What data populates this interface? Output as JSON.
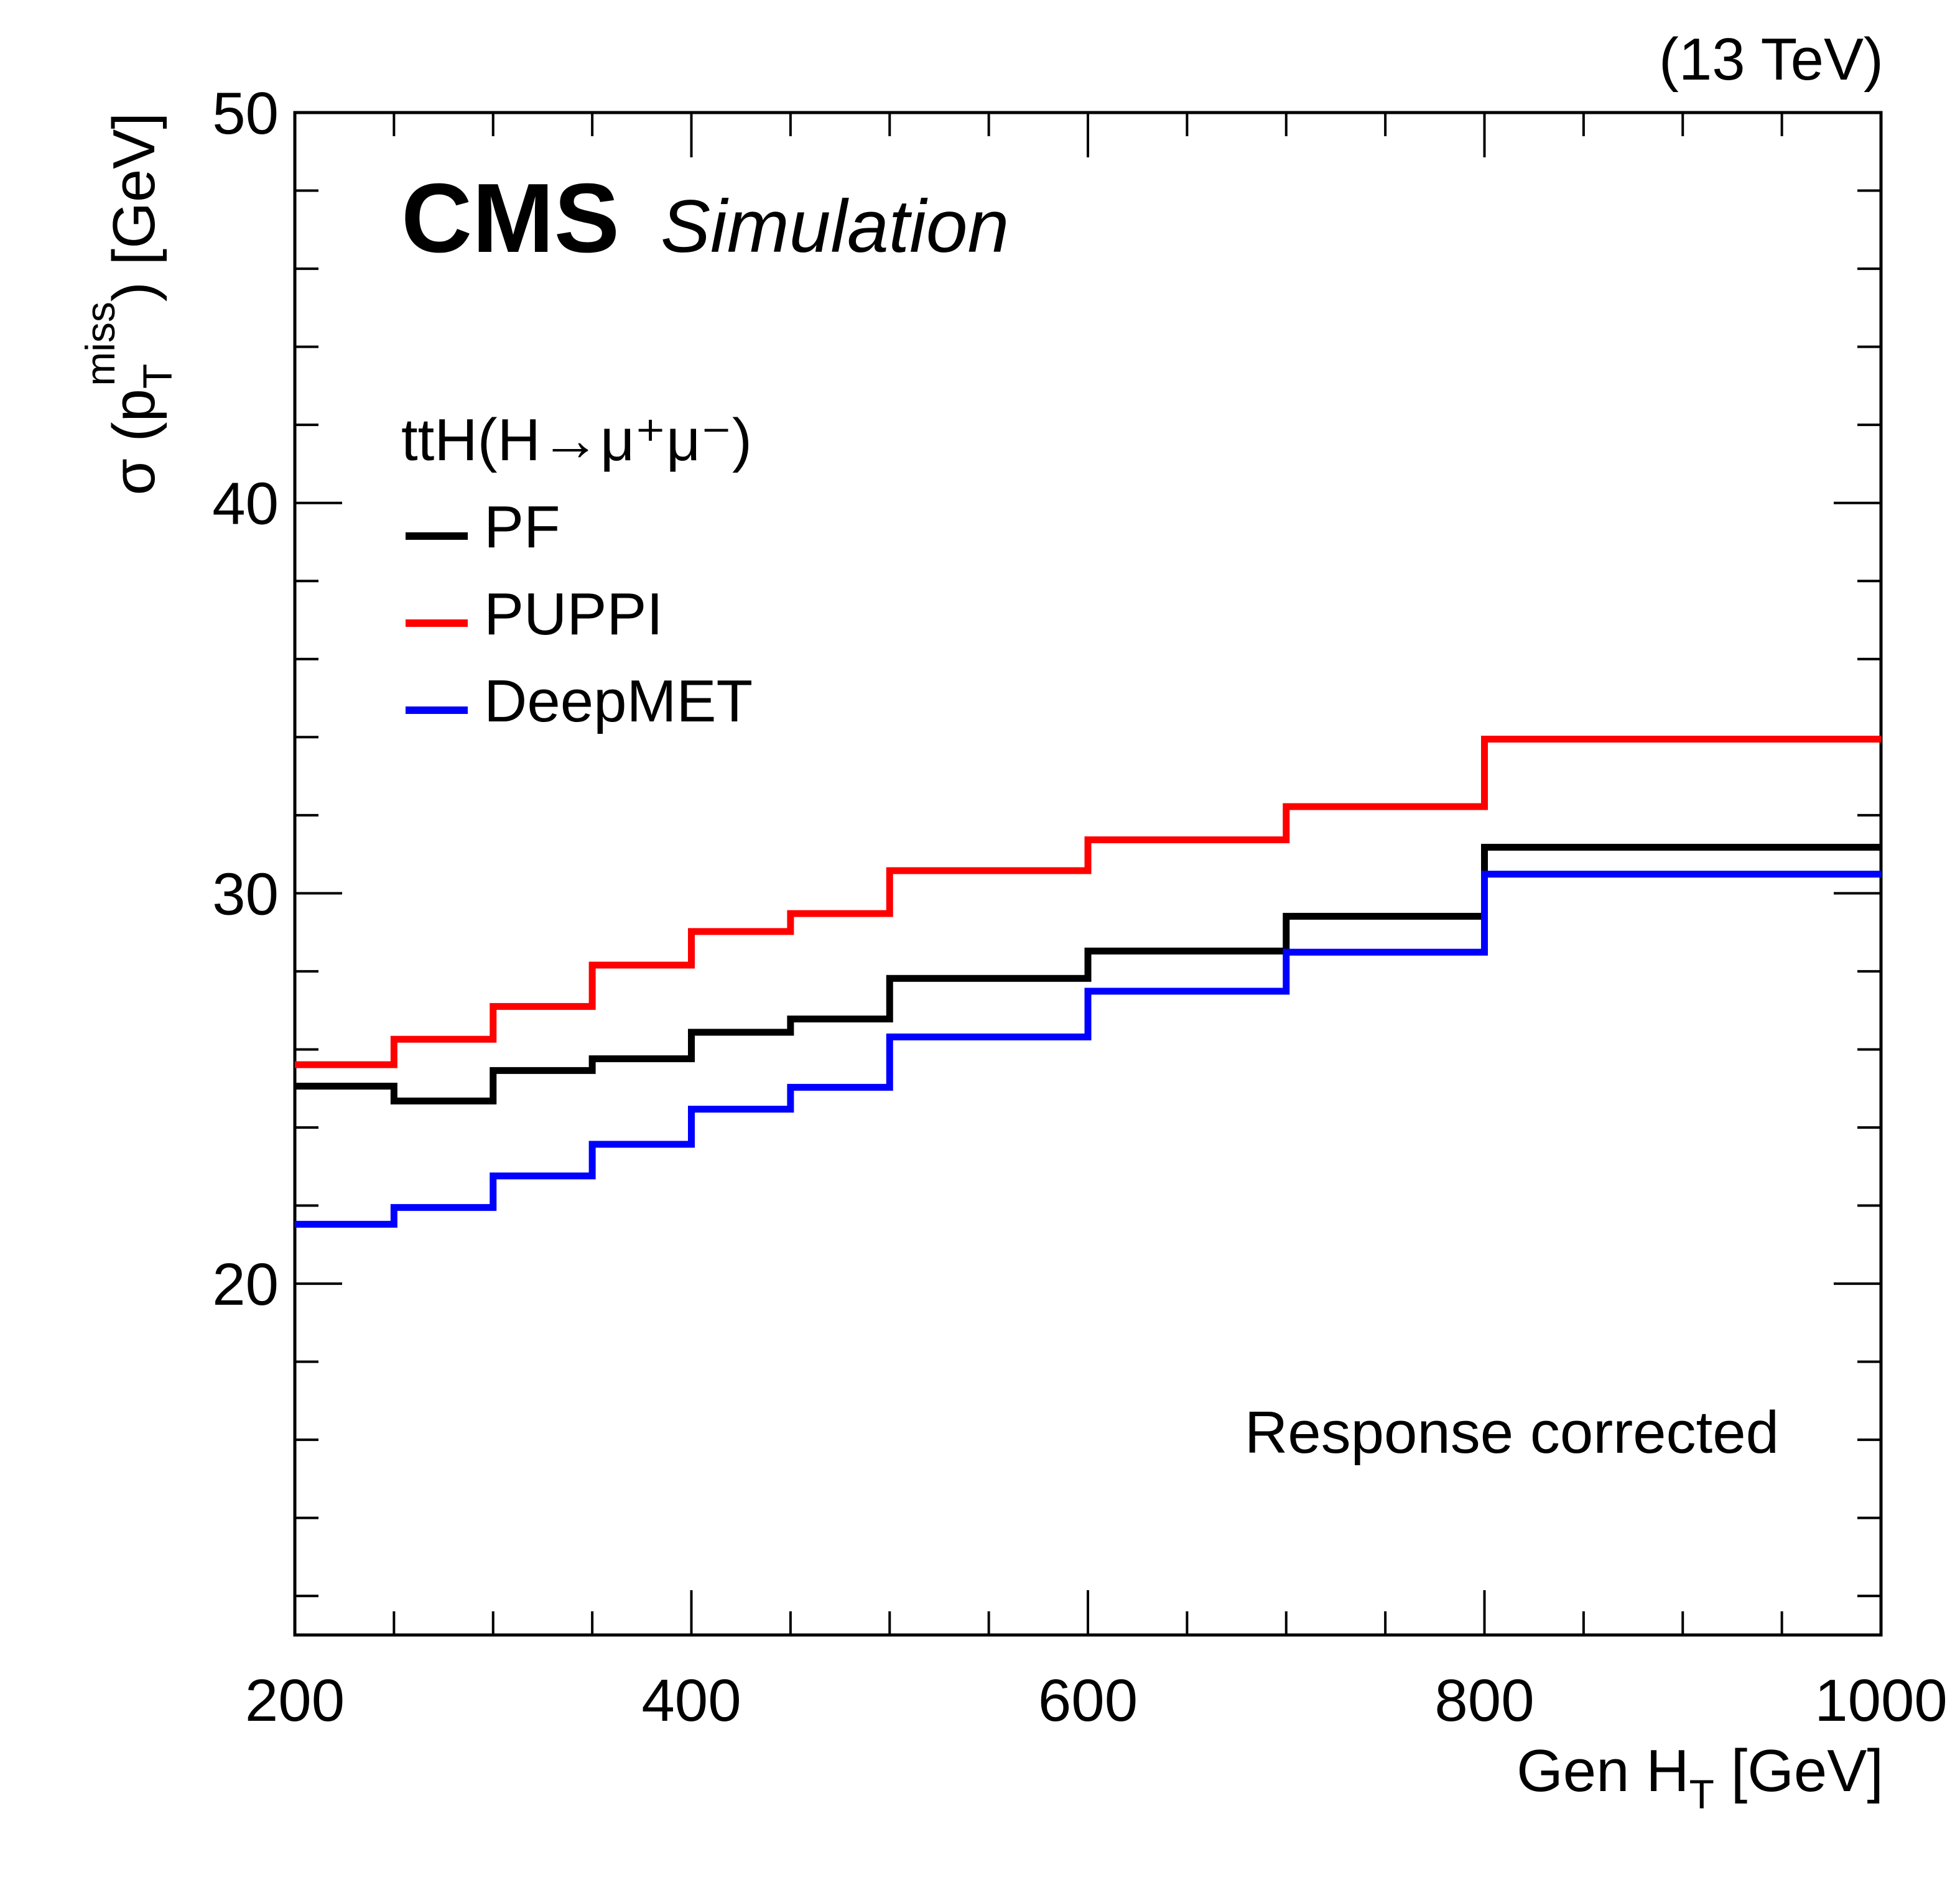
{
  "chart_data": {
    "type": "line",
    "style": "step-histogram",
    "title": "",
    "experiment_label": "CMS",
    "experiment_sublabel": "Simulation",
    "energy_label": "(13 TeV)",
    "annotation": "Response corrected",
    "xlabel": {
      "main": "Gen H",
      "sub": "T",
      "unit": " [GeV]"
    },
    "ylabel": {
      "prefix": "σ (p",
      "sub": "T",
      "sup": "miss",
      "suffix": ") [GeV]"
    },
    "xlim": [
      200,
      1000
    ],
    "ylim": [
      11,
      50
    ],
    "x_major_ticks": [
      200,
      400,
      600,
      800,
      1000
    ],
    "x_tick_labels": [
      "200",
      "400",
      "600",
      "800",
      "1000"
    ],
    "x_minor_step": 50,
    "y_major_ticks": [
      20,
      30,
      40,
      50
    ],
    "y_tick_labels": [
      "20",
      "30",
      "40",
      "50"
    ],
    "y_minor_step": 2,
    "grid": false,
    "legend": {
      "header": "ttH(H→μ⁺μ⁻)",
      "placement": "top-left",
      "entries": [
        "PF",
        "PUPPI",
        "DeepMET"
      ]
    },
    "bin_edges": [
      200,
      250,
      300,
      350,
      400,
      450,
      500,
      600,
      700,
      800,
      1000
    ],
    "series": [
      {
        "name": "PF",
        "color": "#000000",
        "values": [
          25.06,
          24.68,
          25.46,
          25.76,
          26.44,
          26.78,
          27.82,
          28.52,
          29.41,
          31.18
        ]
      },
      {
        "name": "PUPPI",
        "color": "#ff0000",
        "values": [
          25.61,
          26.26,
          27.1,
          28.16,
          29.02,
          29.48,
          30.58,
          31.37,
          32.22,
          33.95
        ]
      },
      {
        "name": "DeepMET",
        "color": "#0000ff",
        "values": [
          21.52,
          21.95,
          22.76,
          23.57,
          24.47,
          25.03,
          26.32,
          27.49,
          28.49,
          30.49
        ]
      }
    ]
  }
}
